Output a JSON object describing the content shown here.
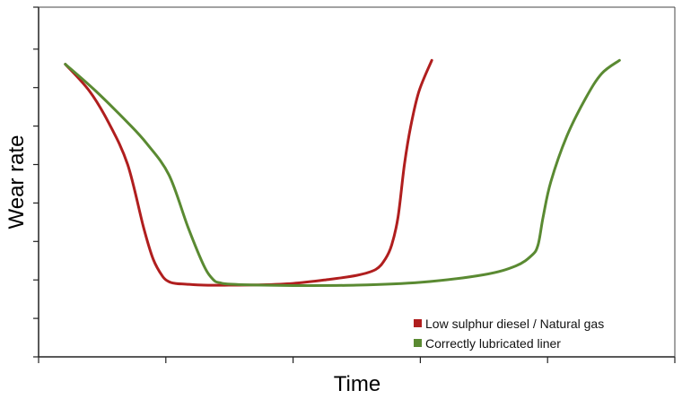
{
  "chart_data": {
    "type": "line",
    "xlabel": "Time",
    "ylabel": "Wear rate",
    "xlim": [
      0,
      100
    ],
    "ylim": [
      0,
      100
    ],
    "x_ticks": [
      0,
      20,
      40,
      60,
      80,
      100
    ],
    "y_ticks": [
      0,
      11,
      22,
      33,
      44,
      55,
      66,
      77,
      88,
      100
    ],
    "x_tick_labels_shown": false,
    "y_tick_labels_shown": false,
    "grid": false,
    "legend_position": "bottom-right",
    "series": [
      {
        "name": "Low sulphur diesel / Natural gas",
        "color": "#b01e1e",
        "x": [
          4.2,
          8,
          11,
          14,
          16.5,
          18,
          19.5,
          20.5,
          21.5,
          23,
          26,
          30,
          35,
          40,
          45,
          50,
          53,
          54.5,
          55.5,
          56.5,
          57.5,
          58.5,
          59.8,
          61.8
        ],
        "y": [
          83.7,
          76,
          67,
          55,
          37,
          28,
          23,
          21.5,
          21,
          20.8,
          20.5,
          20.5,
          20.6,
          21,
          22,
          23.3,
          25,
          28,
          32,
          40,
          55,
          66,
          76,
          84.8
        ]
      },
      {
        "name": "Correctly lubricated liner",
        "color": "#5a8a32",
        "x": [
          4.2,
          9,
          14,
          17,
          20.5,
          23.5,
          26,
          27.5,
          28.5,
          30,
          35,
          40,
          50,
          60,
          70,
          75,
          77.5,
          78.5,
          79.3,
          80.5,
          83,
          86,
          88.5,
          91.3
        ],
        "y": [
          83.7,
          76,
          67,
          61,
          52,
          37,
          26,
          22,
          21.2,
          20.8,
          20.5,
          20.4,
          20.5,
          21.3,
          23.5,
          26,
          29,
          32,
          40,
          50,
          63,
          74,
          81,
          84.8
        ]
      }
    ]
  }
}
